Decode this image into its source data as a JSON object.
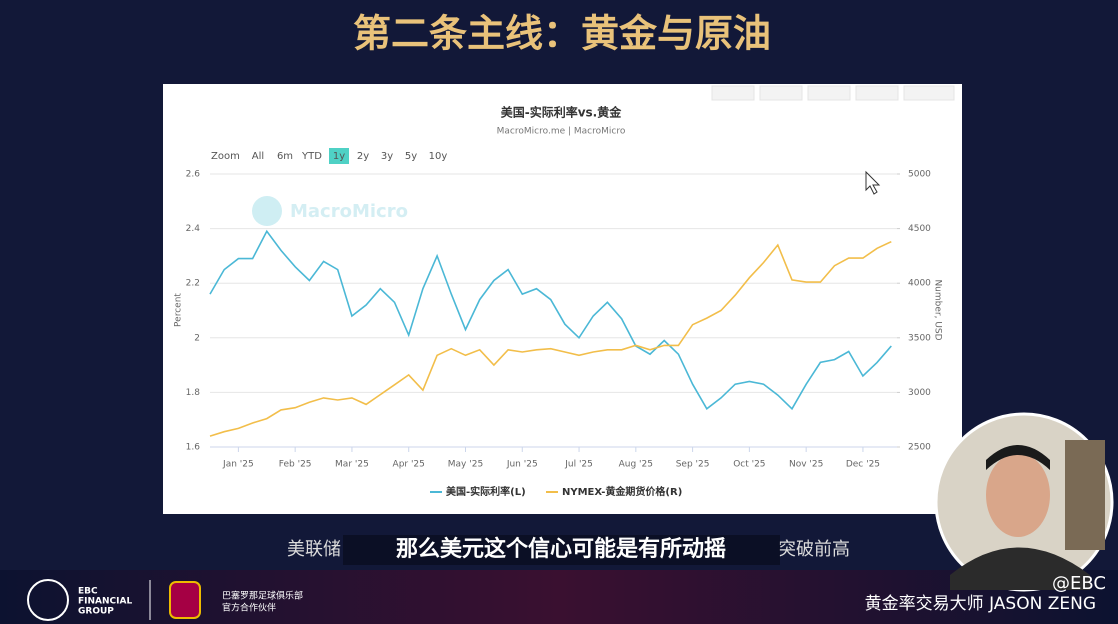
{
  "header": {
    "title": "第二条主线：黄金与原油"
  },
  "chart_data": {
    "type": "line",
    "title": "美国-实际利率vs.黄金",
    "subtitle": "MacroMicro.me | MacroMicro",
    "watermark": "MacroMicro",
    "ylabel": "Percent",
    "y2label": "Number, USD",
    "x": [
      -0.5,
      -0.25,
      0,
      0.25,
      0.5,
      0.75,
      1,
      1.25,
      1.5,
      1.75,
      2,
      2.25,
      2.5,
      2.75,
      3,
      3.25,
      3.5,
      3.75,
      4,
      4.25,
      4.5,
      4.75,
      5,
      5.25,
      5.5,
      5.75,
      6,
      6.25,
      6.5,
      6.75,
      7,
      7.25,
      7.5,
      7.75,
      8,
      8.25,
      8.5,
      8.75,
      9,
      9.25,
      9.5,
      9.75,
      10,
      10.25,
      10.5,
      10.75,
      11,
      11.25,
      11.5
    ],
    "xlim": [
      -0.5,
      11.6
    ],
    "xticks": [
      {
        "value": 0,
        "label": "Jan '25"
      },
      {
        "value": 1,
        "label": "Feb '25"
      },
      {
        "value": 2,
        "label": "Mar '25"
      },
      {
        "value": 3,
        "label": "Apr '25"
      },
      {
        "value": 4,
        "label": "May '25"
      },
      {
        "value": 5,
        "label": "Jun '25"
      },
      {
        "value": 6,
        "label": "Jul '25"
      },
      {
        "value": 7,
        "label": "Aug '25"
      },
      {
        "value": 8,
        "label": "Sep '25"
      },
      {
        "value": 9,
        "label": "Oct '25"
      },
      {
        "value": 10,
        "label": "Nov '25"
      },
      {
        "value": 11,
        "label": "Dec '25"
      }
    ],
    "ylim": [
      1.6,
      2.6
    ],
    "yticks": [
      1.6,
      1.8,
      2,
      2.2,
      2.4,
      2.6
    ],
    "y2lim": [
      2500,
      5000
    ],
    "y2ticks": [
      2500,
      3000,
      3500,
      4000,
      4500,
      5000
    ],
    "grid": true,
    "legend": "bottom",
    "series": [
      {
        "name": "美国-实际利率(L)",
        "color": "#4bb8d6",
        "values": [
          2.16,
          2.25,
          2.29,
          2.29,
          2.39,
          2.32,
          2.26,
          2.21,
          2.28,
          2.25,
          2.08,
          2.12,
          2.18,
          2.13,
          2.01,
          2.18,
          2.3,
          2.16,
          2.03,
          2.14,
          2.21,
          2.25,
          2.16,
          2.18,
          2.14,
          2.05,
          2.0,
          2.08,
          2.13,
          2.07,
          1.97,
          1.94,
          1.99,
          1.94,
          1.83,
          1.74,
          1.78,
          1.83,
          1.84,
          1.83,
          1.79,
          1.74,
          1.83,
          1.91,
          1.92,
          1.95,
          1.86,
          1.91,
          1.97
        ]
      },
      {
        "name": "NYMEX-黄金期货价格(R)",
        "color": "#f2be4a",
        "axis": "y2",
        "values": [
          2600,
          2640,
          2670,
          2720,
          2760,
          2840,
          2860,
          2910,
          2950,
          2930,
          2950,
          2890,
          2980,
          3070,
          3160,
          3020,
          3340,
          3400,
          3340,
          3390,
          3250,
          3390,
          3370,
          3390,
          3400,
          3370,
          3340,
          3370,
          3390,
          3390,
          3430,
          3390,
          3430,
          3430,
          3620,
          3680,
          3750,
          3890,
          4050,
          4190,
          4350,
          4030,
          4010,
          4010,
          4160,
          4230,
          4230,
          4320,
          4380
        ]
      }
    ]
  },
  "zoom": {
    "label": "Zoom",
    "options": [
      "All",
      "6m",
      "YTD",
      "1y",
      "2y",
      "3y",
      "5y",
      "10y"
    ],
    "active": 3
  },
  "caption": {
    "main": "那么美元这个信心可能是有所动摇",
    "behind_left": "美联储",
    "behind_right": "突破前高"
  },
  "footer": {
    "brand": [
      "EBC",
      "FINANCIAL",
      "GROUP"
    ],
    "partner": [
      "巴塞罗那足球俱乐部",
      "官方合作伙伴"
    ],
    "presenter": "黄金率交易大师 JASON ZENG",
    "handle": "@EBC"
  }
}
